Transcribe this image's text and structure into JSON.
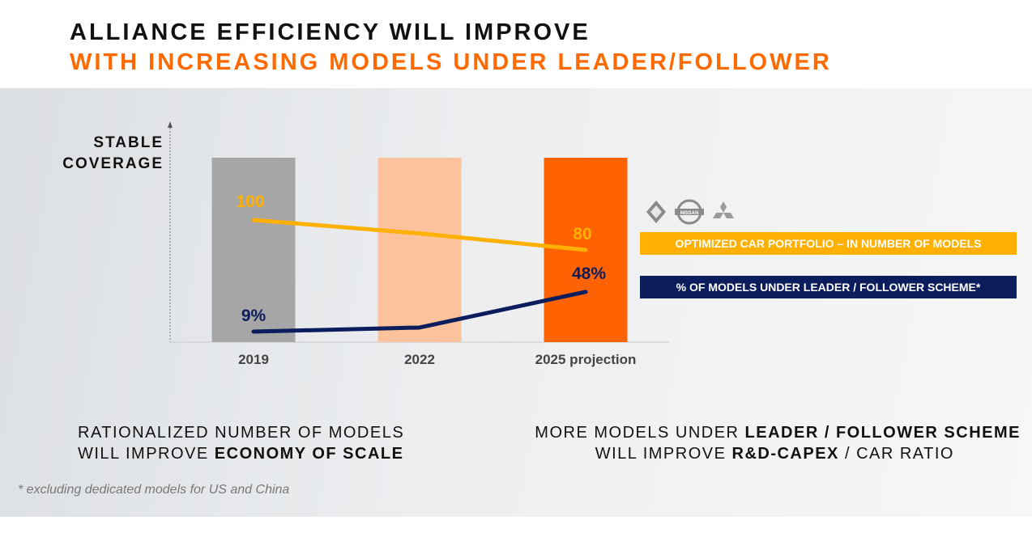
{
  "title": {
    "line1": "ALLIANCE EFFICIENCY WILL IMPROVE",
    "line2": "WITH INCREASING MODELS UNDER LEADER/FOLLOWER"
  },
  "y_axis_label": {
    "line1": "STABLE",
    "line2": "COVERAGE"
  },
  "chart_data": {
    "type": "bar",
    "categories": [
      "2019",
      "2022",
      "2025 projection"
    ],
    "bar_colors": [
      "#a6a6a6",
      "#fcc29b",
      "#ff6200"
    ],
    "series": [
      {
        "name": "OPTIMIZED CAR PORTFOLIO – IN NUMBER OF MODELS",
        "type": "line",
        "color": "#ffb000",
        "values": [
          100,
          91,
          80
        ],
        "labels": [
          "100",
          "",
          "80"
        ]
      },
      {
        "name": "% OF MODELS UNDER LEADER / FOLLOWER SCHEME*",
        "type": "line",
        "color": "#0b1d5c",
        "values": [
          9,
          13,
          48
        ],
        "labels": [
          "9%",
          "",
          "48%"
        ]
      }
    ]
  },
  "legend": {
    "item1": "OPTIMIZED CAR PORTFOLIO – IN NUMBER OF MODELS",
    "item2": "% OF MODELS UNDER LEADER / FOLLOWER SCHEME*",
    "logos": [
      "renault-logo",
      "nissan-logo",
      "mitsubishi-logo"
    ],
    "nissan_text": "NISSAN"
  },
  "messages": {
    "left": {
      "line1": "RATIONALIZED NUMBER OF MODELS",
      "line2_prefix": "WILL IMPROVE ",
      "line2_bold": "ECONOMY OF SCALE"
    },
    "right": {
      "line1_prefix": "MORE MODELS UNDER ",
      "line1_bold": "LEADER / FOLLOWER SCHEME",
      "line2_prefix": "WILL IMPROVE ",
      "line2_bold": "R&D-CAPEX",
      "line2_suffix": " / CAR RATIO"
    }
  },
  "footnote": "* excluding dedicated models for US and China"
}
